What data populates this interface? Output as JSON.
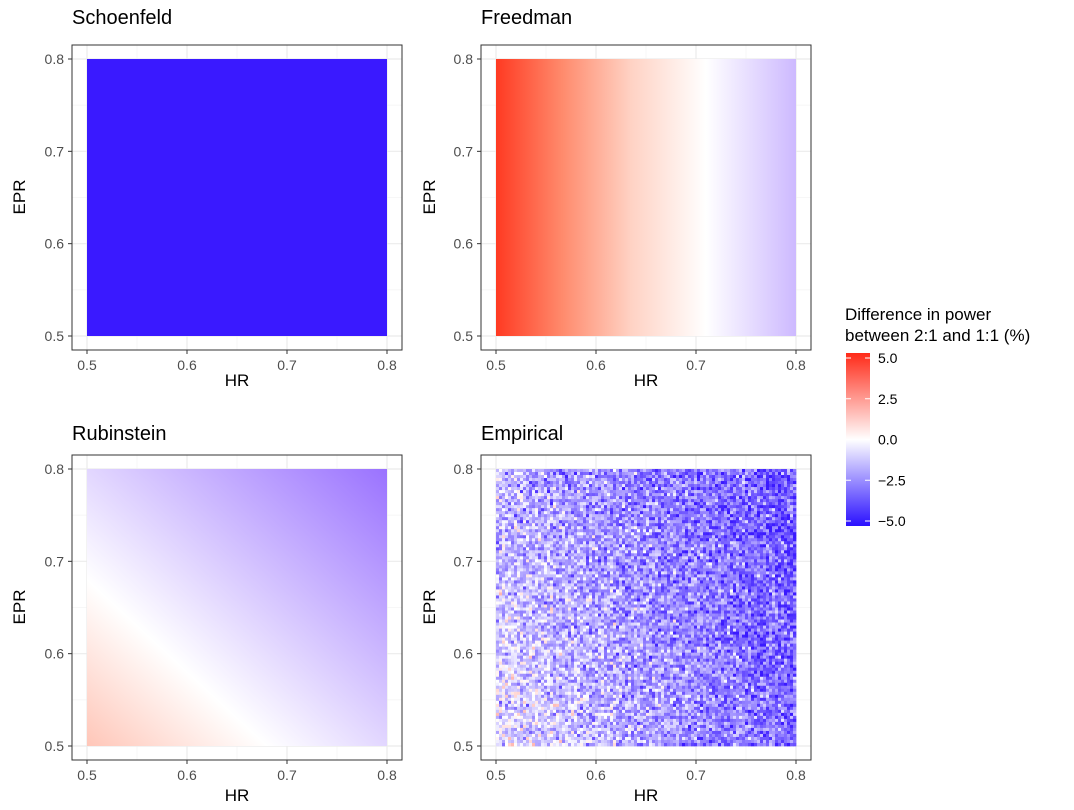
{
  "chart_data": [
    {
      "type": "heatmap",
      "title": "Schoenfeld",
      "xlabel": "HR",
      "ylabel": "EPR",
      "xlim": [
        0.5,
        0.8
      ],
      "ylim": [
        0.5,
        0.8
      ],
      "x_ticks": [
        "0.5",
        "0.6",
        "0.7",
        "0.8"
      ],
      "y_ticks": [
        "0.5",
        "0.6",
        "0.7",
        "0.8"
      ],
      "surface": "constant",
      "value": -5.0
    },
    {
      "type": "heatmap",
      "title": "Freedman",
      "xlabel": "HR",
      "ylabel": "EPR",
      "xlim": [
        0.5,
        0.8
      ],
      "ylim": [
        0.5,
        0.8
      ],
      "x_ticks": [
        "0.5",
        "0.6",
        "0.7",
        "0.8"
      ],
      "y_ticks": [
        "0.5",
        "0.6",
        "0.7",
        "0.8"
      ],
      "surface": "varies with HR only",
      "grid": [
        {
          "hr": 0.5,
          "diff": 4.6
        },
        {
          "hr": 0.55,
          "diff": 3.2
        },
        {
          "hr": 0.6,
          "diff": 2.0
        },
        {
          "hr": 0.65,
          "diff": 1.0
        },
        {
          "hr": 0.7,
          "diff": 0.1
        },
        {
          "hr": 0.75,
          "diff": -0.8
        },
        {
          "hr": 0.8,
          "diff": -1.7
        }
      ]
    },
    {
      "type": "heatmap",
      "title": "Rubinstein",
      "xlabel": "HR",
      "ylabel": "EPR",
      "xlim": [
        0.5,
        0.8
      ],
      "ylim": [
        0.5,
        0.8
      ],
      "x_ticks": [
        "0.5",
        "0.6",
        "0.7",
        "0.8"
      ],
      "y_ticks": [
        "0.5",
        "0.6",
        "0.7",
        "0.8"
      ],
      "surface": "varies with HR and EPR",
      "corners": [
        {
          "hr": 0.5,
          "epr": 0.5,
          "diff": 1.3
        },
        {
          "hr": 0.6,
          "epr": 0.5,
          "diff": 0.0
        },
        {
          "hr": 0.5,
          "epr": 0.68,
          "diff": 0.0
        },
        {
          "hr": 0.5,
          "epr": 0.8,
          "diff": -0.9
        },
        {
          "hr": 0.8,
          "epr": 0.5,
          "diff": -2.5
        },
        {
          "hr": 0.8,
          "epr": 0.8,
          "diff": -2.7
        }
      ]
    },
    {
      "type": "heatmap",
      "title": "Empirical",
      "xlabel": "HR",
      "ylabel": "EPR",
      "xlim": [
        0.5,
        0.8
      ],
      "ylim": [
        0.5,
        0.8
      ],
      "x_ticks": [
        "0.5",
        "0.6",
        "0.7",
        "0.8"
      ],
      "y_ticks": [
        "0.5",
        "0.6",
        "0.7",
        "0.8"
      ],
      "surface": "noisy simulation",
      "trend": [
        {
          "hr": 0.5,
          "epr": 0.5,
          "diff": -0.5
        },
        {
          "hr": 0.8,
          "epr": 0.5,
          "diff": -3.2
        },
        {
          "hr": 0.5,
          "epr": 0.8,
          "diff": -1.8
        },
        {
          "hr": 0.8,
          "epr": 0.8,
          "diff": -3.6
        }
      ]
    }
  ],
  "legend": {
    "title_line1": "Difference in power",
    "title_line2": "between 2:1 and 1:1 (%)",
    "labels": [
      "5.0",
      "2.5",
      "0.0",
      "−2.5",
      "−5.0"
    ],
    "values": [
      5.0,
      2.5,
      0.0,
      -2.5,
      -5.0
    ],
    "limits": [
      -5.0,
      5.0
    ],
    "colors": {
      "high": "#ff2a18",
      "mid": "#ffffff",
      "low": "#3a19ff"
    },
    "placement": "right"
  },
  "colors": {
    "panel_border": "#333333",
    "grid_major": "#ebebeb",
    "grid_minor": "#f5f5f5",
    "tick": "#4d4d4d"
  }
}
